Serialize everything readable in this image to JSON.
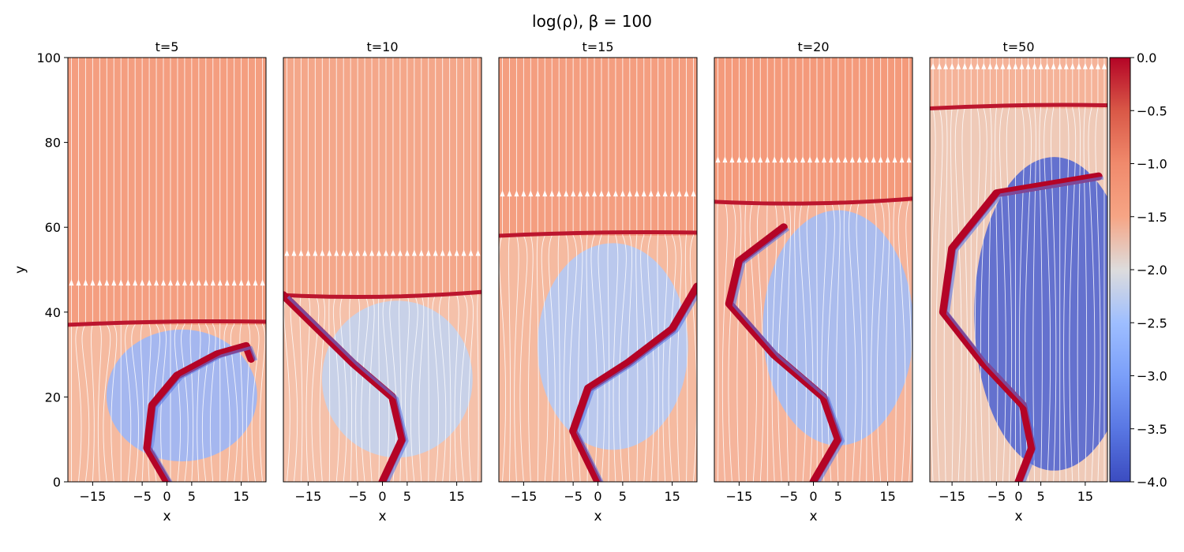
{
  "chart_data": {
    "type": "heatmap",
    "title": "log(ρ), β = 100",
    "xlabel": "x",
    "ylabel": "y",
    "xlim": [
      -20,
      20
    ],
    "ylim": [
      0,
      100
    ],
    "x_ticks": [
      -15,
      -5,
      0,
      5,
      15
    ],
    "y_ticks": [
      0,
      20,
      40,
      60,
      80,
      100
    ],
    "colormap": "coolwarm",
    "colorbar": {
      "range": [
        -4.0,
        0.0
      ],
      "ticks": [
        "0.0",
        "−0.5",
        "−1.0",
        "−1.5",
        "−2.0",
        "−2.5",
        "−3.0",
        "−3.5",
        "−4.0"
      ],
      "tick_values": [
        0.0,
        -0.5,
        -1.0,
        -1.5,
        -2.0,
        -2.5,
        -3.0,
        -3.5,
        -4.0
      ]
    },
    "overlay": "white magnetic field streamlines with arrows",
    "panels": [
      {
        "label": "t=5",
        "t": 5,
        "background_value": -1.05,
        "front_height": 37,
        "cavity_value": -2.9,
        "filament": [
          [
            0,
            0
          ],
          [
            -4,
            8
          ],
          [
            -3,
            18
          ],
          [
            2,
            25
          ],
          [
            10,
            30
          ],
          [
            16,
            32
          ],
          [
            17,
            29
          ]
        ]
      },
      {
        "label": "t=10",
        "t": 10,
        "background_value": -1.15,
        "front_height": 44,
        "cavity_value": -2.4,
        "filament": [
          [
            0,
            0
          ],
          [
            4,
            10
          ],
          [
            2,
            20
          ],
          [
            -6,
            28
          ],
          [
            -13,
            36
          ],
          [
            -20,
            44
          ]
        ]
      },
      {
        "label": "t=15",
        "t": 15,
        "background_value": -1.05,
        "front_height": 58,
        "cavity_value": -2.6,
        "filament": [
          [
            0,
            0
          ],
          [
            -5,
            12
          ],
          [
            -2,
            22
          ],
          [
            6,
            28
          ],
          [
            15,
            36
          ],
          [
            20,
            46
          ]
        ]
      },
      {
        "label": "t=20",
        "t": 20,
        "background_value": -1.0,
        "front_height": 66,
        "cavity_value": -2.8,
        "filament": [
          [
            0,
            0
          ],
          [
            5,
            10
          ],
          [
            2,
            20
          ],
          [
            -8,
            30
          ],
          [
            -17,
            42
          ],
          [
            -15,
            52
          ],
          [
            -6,
            60
          ]
        ]
      },
      {
        "label": "t=50",
        "t": 50,
        "background_value": -1.3,
        "front_height": 88,
        "cavity_value": -3.8,
        "filament": [
          [
            0,
            0
          ],
          [
            3,
            8
          ],
          [
            1,
            18
          ],
          [
            -8,
            28
          ],
          [
            -17,
            40
          ],
          [
            -15,
            55
          ],
          [
            -5,
            68
          ],
          [
            18,
            72
          ]
        ]
      }
    ]
  }
}
